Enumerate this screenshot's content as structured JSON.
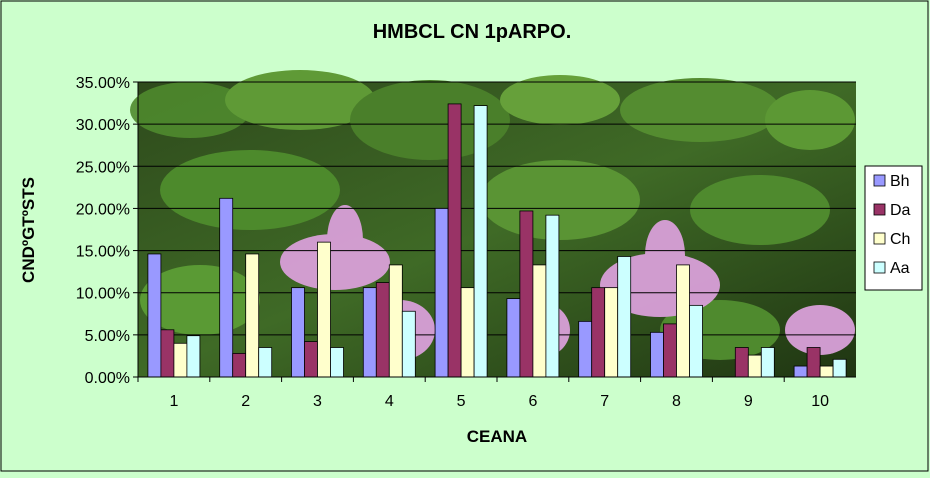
{
  "chart_data": {
    "type": "bar",
    "title": "HMBCL CN 1pARPO.",
    "xlabel": "CEANA",
    "ylabel": "CNDºGTºSTS",
    "categories": [
      "1",
      "2",
      "3",
      "4",
      "5",
      "6",
      "7",
      "8",
      "9",
      "10"
    ],
    "ylim": [
      0,
      35
    ],
    "yticks": [
      "0.00%",
      "5.00%",
      "10.00%",
      "15.00%",
      "20.00%",
      "25.00%",
      "30.00%",
      "35.00%"
    ],
    "grid": true,
    "legend_position": "right",
    "series": [
      {
        "name": "Bh",
        "color": "#9999ff",
        "values": [
          14.6,
          21.2,
          10.6,
          10.6,
          20.0,
          9.3,
          6.6,
          5.3,
          0.0,
          1.3
        ]
      },
      {
        "name": "Da",
        "color": "#993366",
        "values": [
          5.6,
          2.8,
          4.2,
          11.2,
          32.4,
          19.7,
          10.6,
          6.3,
          3.5,
          3.5
        ]
      },
      {
        "name": "Ch",
        "color": "#ffffcc",
        "values": [
          4.0,
          14.6,
          16.0,
          13.3,
          10.6,
          13.3,
          10.6,
          13.3,
          2.6,
          1.3
        ]
      },
      {
        "name": "Aa",
        "color": "#ccffff",
        "values": [
          4.9,
          3.5,
          3.5,
          7.8,
          32.2,
          19.2,
          14.3,
          8.5,
          3.5,
          2.1
        ]
      }
    ]
  }
}
